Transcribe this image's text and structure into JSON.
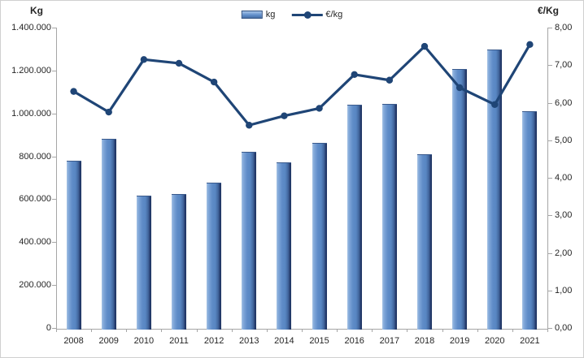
{
  "chart_data": {
    "type": "bar",
    "subtype": "bar+line-combo",
    "categories": [
      "2008",
      "2009",
      "2010",
      "2011",
      "2012",
      "2013",
      "2014",
      "2015",
      "2016",
      "2017",
      "2018",
      "2019",
      "2020",
      "2021"
    ],
    "series": [
      {
        "name": "kg",
        "type": "bar",
        "axis": "left",
        "values": [
          785000,
          885000,
          620000,
          630000,
          680000,
          825000,
          775000,
          865000,
          1045000,
          1050000,
          815000,
          1210000,
          1300000,
          1015000
        ]
      },
      {
        "name": "€/kg",
        "type": "line",
        "axis": "right",
        "values": [
          6.3,
          5.75,
          7.15,
          7.05,
          6.55,
          5.4,
          5.65,
          5.85,
          6.75,
          6.6,
          7.5,
          6.4,
          5.95,
          7.55
        ]
      }
    ],
    "left_axis": {
      "title": "Kg",
      "min": 0,
      "max": 1400000,
      "step": 200000,
      "tick_labels": [
        "0",
        "200.000",
        "400.000",
        "600.000",
        "800.000",
        "1.000.000",
        "1.200.000",
        "1.400.000"
      ]
    },
    "right_axis": {
      "title": "€/Kg",
      "min": 0,
      "max": 8,
      "step": 1,
      "tick_labels": [
        "0,00",
        "1,00",
        "2,00",
        "3,00",
        "4,00",
        "5,00",
        "6,00",
        "7,00",
        "8,00"
      ]
    },
    "legend": [
      {
        "label": "kg",
        "swatch": "bar"
      },
      {
        "label": "€/kg",
        "swatch": "line-marker"
      }
    ],
    "legend_position": "top-center",
    "grid": false
  },
  "colors": {
    "bar_fill": "#5f8cc8",
    "bar_edge_dark": "#1f3864",
    "line": "#1f4576",
    "axis": "#a6a6a6",
    "text": "#262626",
    "background": "#ffffff"
  }
}
